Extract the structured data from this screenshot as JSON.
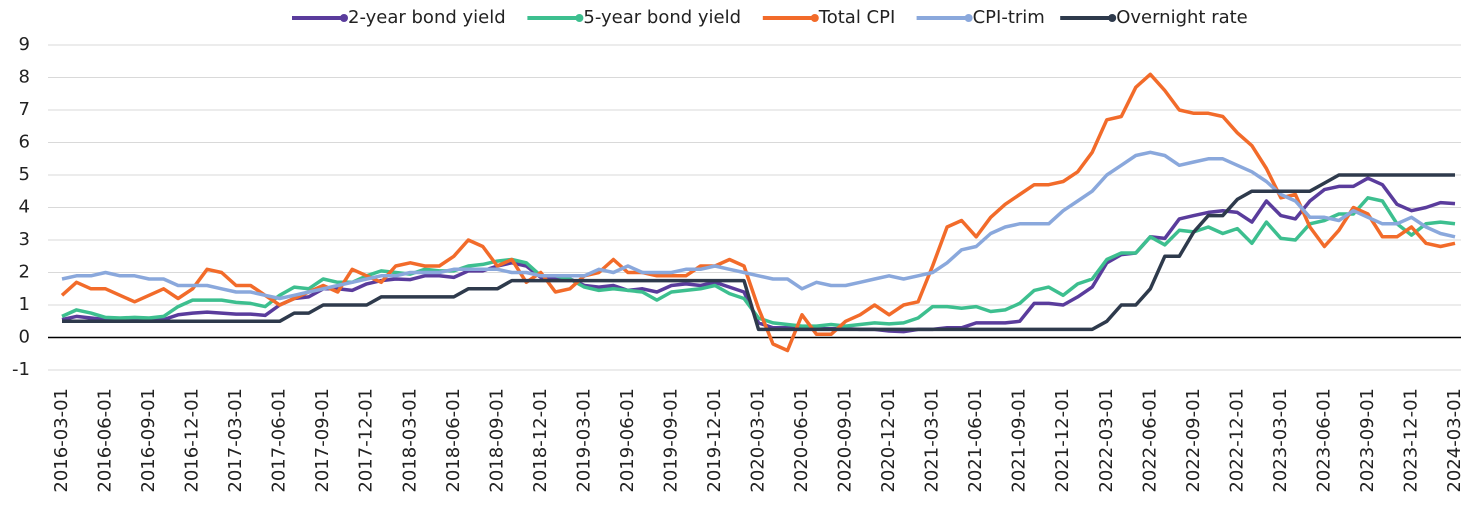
{
  "chart_data": {
    "type": "line",
    "categories": [
      "2016-03-01",
      null,
      null,
      "2016-06-01",
      null,
      null,
      "2016-09-01",
      null,
      null,
      "2016-12-01",
      null,
      null,
      "2017-03-01",
      null,
      null,
      "2017-06-01",
      null,
      null,
      "2017-09-01",
      null,
      null,
      "2017-12-01",
      null,
      null,
      "2018-03-01",
      null,
      null,
      "2018-06-01",
      null,
      null,
      "2018-09-01",
      null,
      null,
      "2018-12-01",
      null,
      null,
      "2019-03-01",
      null,
      null,
      "2019-06-01",
      null,
      null,
      "2019-09-01",
      null,
      null,
      "2019-12-01",
      null,
      null,
      "2020-03-01",
      null,
      null,
      "2020-06-01",
      null,
      null,
      "2020-09-01",
      null,
      null,
      "2020-12-01",
      null,
      null,
      "2021-03-01",
      null,
      null,
      "2021-06-01",
      null,
      null,
      "2021-09-01",
      null,
      null,
      "2021-12-01",
      null,
      null,
      "2022-03-01",
      null,
      null,
      "2022-06-01",
      null,
      null,
      "2022-09-01",
      null,
      null,
      "2022-12-01",
      null,
      null,
      "2023-03-01",
      null,
      null,
      "2023-06-01",
      null,
      null,
      "2023-09-01",
      null,
      null,
      "2023-12-01",
      null,
      null,
      "2024-03-01"
    ],
    "series": [
      {
        "name": "2-year bond yield",
        "color": "#5a3c9c",
        "values": [
          0.55,
          0.65,
          0.6,
          0.55,
          0.55,
          0.55,
          0.55,
          0.55,
          0.7,
          0.75,
          0.78,
          0.75,
          0.72,
          0.72,
          0.68,
          1.0,
          1.2,
          1.25,
          1.5,
          1.5,
          1.45,
          1.65,
          1.75,
          1.8,
          1.78,
          1.9,
          1.9,
          1.85,
          2.05,
          2.05,
          2.2,
          2.3,
          2.2,
          1.85,
          1.85,
          1.8,
          1.6,
          1.55,
          1.6,
          1.45,
          1.5,
          1.4,
          1.6,
          1.65,
          1.6,
          1.7,
          1.55,
          1.4,
          0.45,
          0.3,
          0.3,
          0.28,
          0.27,
          0.27,
          0.27,
          0.25,
          0.25,
          0.2,
          0.18,
          0.25,
          0.25,
          0.3,
          0.3,
          0.45,
          0.45,
          0.45,
          0.5,
          1.05,
          1.05,
          1.0,
          1.25,
          1.55,
          2.3,
          2.55,
          2.6,
          3.1,
          3.05,
          3.65,
          3.75,
          3.85,
          3.9,
          3.85,
          3.55,
          4.2,
          3.75,
          3.65,
          4.2,
          4.55,
          4.65,
          4.65,
          4.9,
          4.7,
          4.1,
          3.9,
          4.0,
          4.15,
          4.12
        ]
      },
      {
        "name": "5-year bond yield",
        "color": "#3dbf8f",
        "values": [
          0.65,
          0.85,
          0.75,
          0.62,
          0.6,
          0.62,
          0.6,
          0.65,
          0.95,
          1.15,
          1.15,
          1.15,
          1.08,
          1.05,
          0.95,
          1.3,
          1.55,
          1.5,
          1.8,
          1.7,
          1.7,
          1.9,
          2.05,
          2.0,
          1.95,
          2.1,
          2.05,
          2.05,
          2.2,
          2.25,
          2.35,
          2.4,
          2.3,
          1.9,
          1.9,
          1.8,
          1.55,
          1.45,
          1.5,
          1.45,
          1.4,
          1.15,
          1.4,
          1.45,
          1.5,
          1.6,
          1.35,
          1.2,
          0.6,
          0.45,
          0.4,
          0.35,
          0.35,
          0.4,
          0.35,
          0.4,
          0.45,
          0.42,
          0.45,
          0.6,
          0.95,
          0.95,
          0.9,
          0.95,
          0.8,
          0.85,
          1.05,
          1.45,
          1.55,
          1.3,
          1.65,
          1.8,
          2.4,
          2.6,
          2.6,
          3.1,
          2.85,
          3.3,
          3.25,
          3.4,
          3.2,
          3.35,
          2.9,
          3.55,
          3.05,
          3.0,
          3.5,
          3.6,
          3.8,
          3.8,
          4.3,
          4.2,
          3.5,
          3.15,
          3.5,
          3.55,
          3.5
        ]
      },
      {
        "name": "Total CPI",
        "color": "#f26b2a",
        "values": [
          1.3,
          1.7,
          1.5,
          1.5,
          1.3,
          1.1,
          1.3,
          1.5,
          1.2,
          1.5,
          2.1,
          2.0,
          1.6,
          1.6,
          1.3,
          1.0,
          1.2,
          1.4,
          1.6,
          1.4,
          2.1,
          1.9,
          1.7,
          2.2,
          2.3,
          2.2,
          2.2,
          2.5,
          3.0,
          2.8,
          2.2,
          2.4,
          1.7,
          2.0,
          1.4,
          1.5,
          1.9,
          2.0,
          2.4,
          2.0,
          2.0,
          1.9,
          1.9,
          1.9,
          2.2,
          2.2,
          2.4,
          2.2,
          0.9,
          -0.2,
          -0.4,
          0.7,
          0.1,
          0.1,
          0.5,
          0.7,
          1.0,
          0.7,
          1.0,
          1.1,
          2.2,
          3.4,
          3.6,
          3.1,
          3.7,
          4.1,
          4.4,
          4.7,
          4.7,
          4.8,
          5.1,
          5.7,
          6.7,
          6.8,
          7.7,
          8.1,
          7.6,
          7.0,
          6.9,
          6.9,
          6.8,
          6.3,
          5.9,
          5.2,
          4.3,
          4.4,
          3.4,
          2.8,
          3.3,
          4.0,
          3.8,
          3.1,
          3.1,
          3.4,
          2.9,
          2.8,
          2.9
        ]
      },
      {
        "name": "CPI-trim",
        "color": "#8aa8dc",
        "values": [
          1.8,
          1.9,
          1.9,
          2.0,
          1.9,
          1.9,
          1.8,
          1.8,
          1.6,
          1.6,
          1.6,
          1.5,
          1.4,
          1.4,
          1.3,
          1.2,
          1.3,
          1.4,
          1.5,
          1.6,
          1.7,
          1.8,
          1.9,
          1.9,
          2.0,
          2.0,
          2.0,
          2.1,
          2.1,
          2.1,
          2.1,
          2.0,
          2.0,
          1.9,
          1.9,
          1.9,
          1.9,
          2.1,
          2.0,
          2.2,
          2.0,
          2.0,
          2.0,
          2.1,
          2.1,
          2.2,
          2.1,
          2.0,
          1.9,
          1.8,
          1.8,
          1.5,
          1.7,
          1.6,
          1.6,
          1.7,
          1.8,
          1.9,
          1.8,
          1.9,
          2.0,
          2.3,
          2.7,
          2.8,
          3.2,
          3.4,
          3.5,
          3.5,
          3.5,
          3.9,
          4.2,
          4.5,
          5.0,
          5.3,
          5.6,
          5.7,
          5.6,
          5.3,
          5.4,
          5.5,
          5.5,
          5.3,
          5.1,
          4.8,
          4.4,
          4.2,
          3.7,
          3.7,
          3.6,
          3.9,
          3.7,
          3.5,
          3.5,
          3.7,
          3.4,
          3.2,
          3.1
        ]
      },
      {
        "name": "Overnight rate",
        "color": "#2e3a4c",
        "values": [
          0.5,
          0.5,
          0.5,
          0.5,
          0.5,
          0.5,
          0.5,
          0.5,
          0.5,
          0.5,
          0.5,
          0.5,
          0.5,
          0.5,
          0.5,
          0.5,
          0.75,
          0.75,
          1.0,
          1.0,
          1.0,
          1.0,
          1.25,
          1.25,
          1.25,
          1.25,
          1.25,
          1.25,
          1.5,
          1.5,
          1.5,
          1.75,
          1.75,
          1.75,
          1.75,
          1.75,
          1.75,
          1.75,
          1.75,
          1.75,
          1.75,
          1.75,
          1.75,
          1.75,
          1.75,
          1.75,
          1.75,
          1.75,
          0.25,
          0.25,
          0.25,
          0.25,
          0.25,
          0.25,
          0.25,
          0.25,
          0.25,
          0.25,
          0.25,
          0.25,
          0.25,
          0.25,
          0.25,
          0.25,
          0.25,
          0.25,
          0.25,
          0.25,
          0.25,
          0.25,
          0.25,
          0.25,
          0.5,
          1.0,
          1.0,
          1.5,
          2.5,
          2.5,
          3.25,
          3.75,
          3.75,
          4.25,
          4.5,
          4.5,
          4.5,
          4.5,
          4.5,
          4.75,
          5.0,
          5.0,
          5.0,
          5.0,
          5.0,
          5.0,
          5.0,
          5.0,
          5.0
        ]
      }
    ],
    "ylim": [
      -1,
      9
    ],
    "yticks": [
      -1,
      0,
      1,
      2,
      3,
      4,
      5,
      6,
      7,
      8,
      9
    ],
    "grid": true,
    "legend": "top"
  }
}
